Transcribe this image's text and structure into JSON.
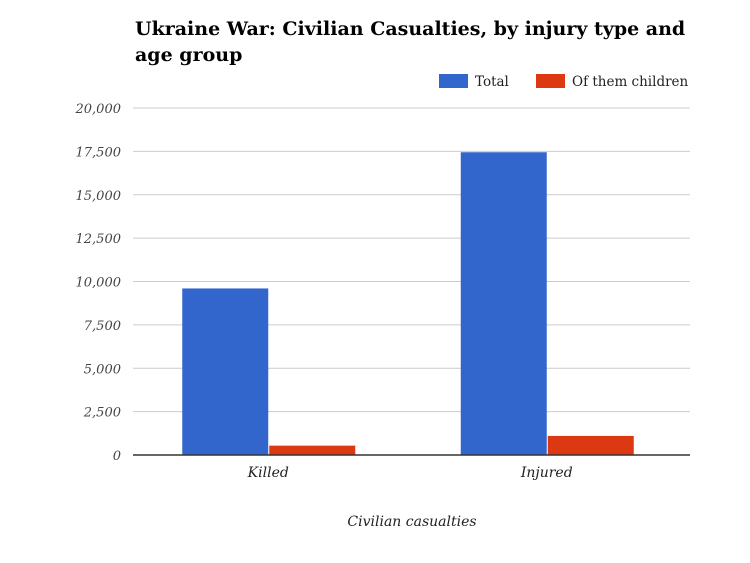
{
  "chart_data": {
    "type": "bar",
    "title": "Ukraine War: Civilian Casualties, by injury type and age group",
    "xlabel": "Civilian casualties",
    "ylabel": "",
    "categories": [
      "Killed",
      "Injured"
    ],
    "series": [
      {
        "name": "Total",
        "color": "#3366cc",
        "values": [
          9600,
          17450
        ]
      },
      {
        "name": "Of them children",
        "color": "#dc3912",
        "values": [
          540,
          1100
        ]
      }
    ],
    "ylim": [
      0,
      20000
    ],
    "yticks": [
      "0",
      "2,500",
      "5,000",
      "7,500",
      "10,000",
      "12,500",
      "15,000",
      "17,500",
      "20,000"
    ],
    "grid": true,
    "legend": "top-right"
  }
}
